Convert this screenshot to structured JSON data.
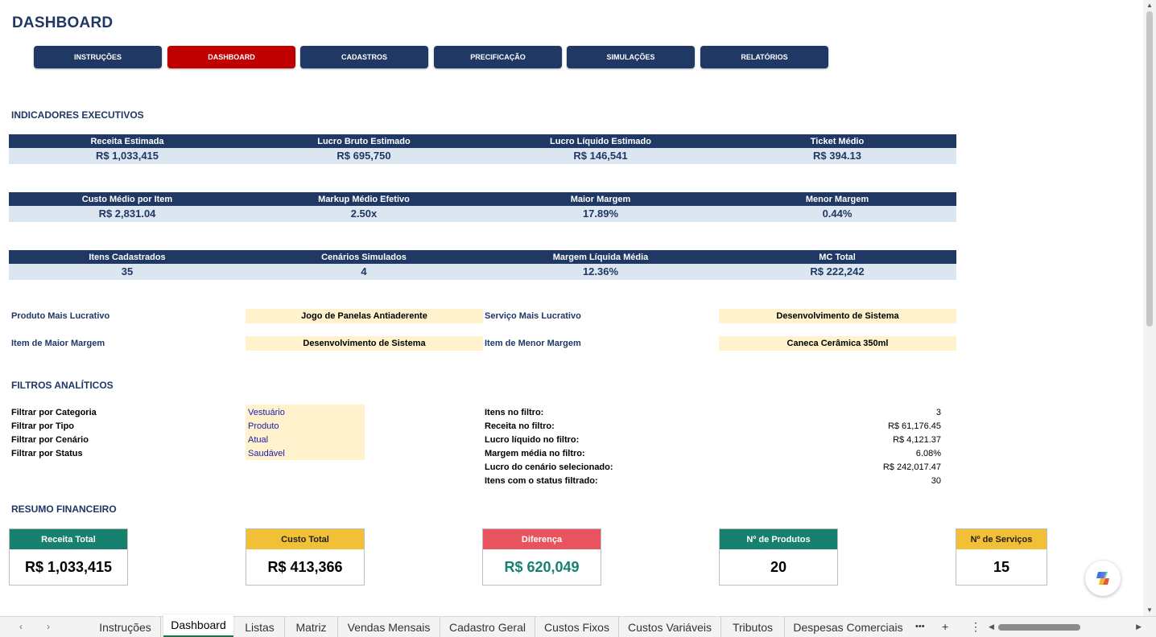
{
  "page": {
    "title": "DASHBOARD"
  },
  "nav": [
    {
      "label": "INSTRUÇÕES",
      "active": false
    },
    {
      "label": "DASHBOARD",
      "active": true
    },
    {
      "label": "CADASTROS",
      "active": false
    },
    {
      "label": "PRECIFICAÇÃO",
      "active": false
    },
    {
      "label": "SIMULAÇÕES",
      "active": false
    },
    {
      "label": "RELATÓRIOS",
      "active": false
    }
  ],
  "sections": {
    "indicadores": "INDICADORES EXECUTIVOS",
    "filtros": "FILTROS ANALÍTICOS",
    "resumo": "RESUMO FINANCEIRO"
  },
  "kpi_rows": [
    {
      "labels": [
        "Receita Estimada",
        "Lucro Bruto Estimado",
        "Lucro Líquido Estimado",
        "Ticket Médio"
      ],
      "values": [
        "R$ 1,033,415",
        "R$ 695,750",
        "R$ 146,541",
        "R$ 394.13"
      ]
    },
    {
      "labels": [
        "Custo Médio por Item",
        "Markup Médio Efetivo",
        "Maior Margem",
        "Menor Margem"
      ],
      "values": [
        "R$ 2,831.04",
        "2.50x",
        "17.89%",
        "0.44%"
      ]
    },
    {
      "labels": [
        "Itens Cadastrados",
        "Cenários Simulados",
        "Margem Líquida Média",
        "MC Total"
      ],
      "values": [
        "35",
        "4",
        "12.36%",
        "R$ 222,242"
      ]
    }
  ],
  "highlights": [
    {
      "label": "Produto Mais Lucrativo",
      "value": "Jogo de Panelas Antiaderente"
    },
    {
      "label": "Serviço Mais Lucrativo",
      "value": "Desenvolvimento de Sistema"
    },
    {
      "label": "Item de Maior Margem",
      "value": "Desenvolvimento de Sistema"
    },
    {
      "label": "Item de Menor Margem",
      "value": "Caneca Cerâmica 350ml"
    }
  ],
  "filters": [
    {
      "label": "Filtrar por Categoria",
      "value": "Vestuário"
    },
    {
      "label": "Filtrar por Tipo",
      "value": "Produto"
    },
    {
      "label": "Filtrar por Cenário",
      "value": "Atual"
    },
    {
      "label": "Filtrar por Status",
      "value": "Saudável"
    }
  ],
  "filter_stats": [
    {
      "label": "Itens no filtro:",
      "value": "3"
    },
    {
      "label": "Receita no filtro:",
      "value": "R$ 61,176.45"
    },
    {
      "label": "Lucro líquido no filtro:",
      "value": "R$ 4,121.37"
    },
    {
      "label": "Margem média no filtro:",
      "value": "6.08%"
    },
    {
      "label": "Lucro do cenário selecionado:",
      "value": "R$ 242,017.47"
    },
    {
      "label": "Itens com o status filtrado:",
      "value": "30"
    }
  ],
  "cards": [
    {
      "label": "Receita Total",
      "value": "R$ 1,033,415",
      "header_color": "#17806f",
      "header_text": "#ffffff",
      "value_color": "#000000"
    },
    {
      "label": "Custo Total",
      "value": "R$ 413,366",
      "header_color": "#f2c037",
      "header_text": "#1f1f1f",
      "value_color": "#000000"
    },
    {
      "label": "Diferença",
      "value": "R$ 620,049",
      "header_color": "#e9535f",
      "header_text": "#ffffff",
      "value_color": "#17806f"
    },
    {
      "label": "Nº de Produtos",
      "value": "20",
      "header_color": "#17806f",
      "header_text": "#ffffff",
      "value_color": "#000000"
    },
    {
      "label": "Nº de Serviços",
      "value": "15",
      "header_color": "#f2c037",
      "header_text": "#1f1f1f",
      "value_color": "#000000"
    }
  ],
  "tabs": [
    "Instruções",
    "Dashboard",
    "Listas",
    "Matriz",
    "Vendas Mensais",
    "Cadastro Geral",
    "Custos Fixos",
    "Custos Variáveis",
    "Tributos",
    "Despesas Comerciais"
  ],
  "active_tab": "Dashboard",
  "tab_controls": {
    "more": "•••",
    "add": "+",
    "menu": "⋮"
  },
  "icons": {
    "tab-prev": "chevron-left-icon",
    "tab-next": "chevron-right-icon",
    "copilot": "copilot-icon"
  }
}
